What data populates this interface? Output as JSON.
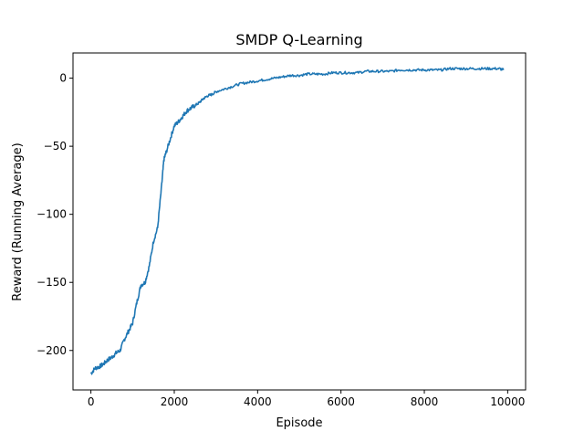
{
  "chart_data": {
    "type": "line",
    "title": "SMDP Q-Learning",
    "xlabel": "Episode",
    "ylabel": "Reward (Running Average)",
    "xlim": [
      -430,
      10430
    ],
    "ylim": [
      -229,
      18.5
    ],
    "xticks": [
      0,
      2000,
      4000,
      6000,
      8000,
      10000
    ],
    "yticks": [
      -200,
      -150,
      -100,
      -50,
      0
    ],
    "xtick_labels": [
      "0",
      "2000",
      "4000",
      "6000",
      "8000",
      "10000"
    ],
    "ytick_labels": [
      "−200",
      "−150",
      "−100",
      "−50",
      "0"
    ],
    "grid": false,
    "series": [
      {
        "color": "#1f77b4",
        "x": [
          0,
          100,
          200,
          300,
          400,
          500,
          600,
          700,
          800,
          900,
          1000,
          1100,
          1200,
          1300,
          1400,
          1500,
          1600,
          1700,
          1750,
          1800,
          1900,
          2000,
          2100,
          2200,
          2300,
          2400,
          2500,
          2600,
          2700,
          2800,
          2900,
          3000,
          3200,
          3400,
          3600,
          3800,
          4000,
          4200,
          4400,
          4600,
          4800,
          5000,
          5200,
          5400,
          5600,
          5800,
          6000,
          6200,
          6400,
          6600,
          6800,
          7000,
          7200,
          7400,
          7600,
          7800,
          8000,
          8200,
          8400,
          8600,
          8800,
          9000,
          9200,
          9400,
          9600,
          9800,
          9900
        ],
        "y": [
          -217,
          -213,
          -212,
          -210,
          -207,
          -205,
          -202,
          -200,
          -192,
          -186,
          -180,
          -165,
          -152,
          -150,
          -138,
          -120,
          -110,
          -78,
          -60,
          -55,
          -45,
          -35,
          -32,
          -28,
          -24,
          -22,
          -20,
          -18,
          -15,
          -13,
          -12,
          -10,
          -8,
          -6,
          -4,
          -3,
          -2,
          -1,
          0,
          1,
          2,
          2,
          3,
          3,
          3,
          4,
          4,
          4,
          4,
          5,
          5,
          5,
          5,
          6,
          6,
          6,
          6,
          6,
          6,
          7,
          7,
          7,
          7,
          7,
          7,
          7,
          6
        ]
      }
    ]
  }
}
